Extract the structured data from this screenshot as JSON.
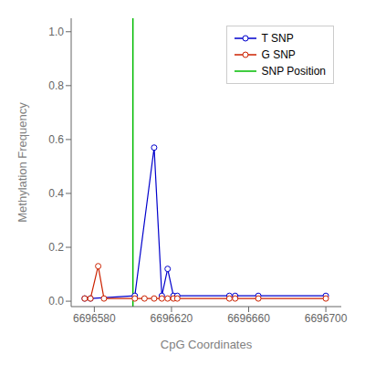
{
  "chart_data": {
    "type": "line",
    "xlabel": "CpG Coordinates",
    "ylabel": "Methylation Frequency",
    "xlim": [
      6696568,
      6696708
    ],
    "ylim": [
      -0.02,
      1.05
    ],
    "xticks": [
      6696580,
      6696620,
      6696660,
      6696700
    ],
    "yticks": [
      {
        "value": 0.0,
        "label": "0.0"
      },
      0.2,
      0.4,
      0.6,
      0.8,
      {
        "value": 1.0,
        "label": "1.0"
      }
    ],
    "grid": false,
    "legend": "upper right",
    "series": [
      {
        "name": "T SNP",
        "color": "#0000cc",
        "marker": "circle",
        "line_style": "solid",
        "x": [
          6696575,
          6696578,
          6696601,
          6696611,
          6696615,
          6696618,
          6696621,
          6696623,
          6696650,
          6696653,
          6696665,
          6696700
        ],
        "values": [
          0.01,
          0.01,
          0.02,
          0.57,
          0.02,
          0.12,
          0.02,
          0.02,
          0.02,
          0.02,
          0.02,
          0.02
        ]
      },
      {
        "name": "G SNP",
        "color": "#cc2200",
        "marker": "circle",
        "line_style": "solid",
        "x": [
          6696575,
          6696578,
          6696582,
          6696585,
          6696601,
          6696606,
          6696611,
          6696615,
          6696618,
          6696621,
          6696623,
          6696650,
          6696653,
          6696665,
          6696700
        ],
        "values": [
          0.01,
          0.01,
          0.13,
          0.01,
          0.01,
          0.01,
          0.01,
          0.01,
          0.01,
          0.01,
          0.01,
          0.01,
          0.01,
          0.01,
          0.01
        ]
      },
      {
        "name": "SNP Position",
        "type": "vline",
        "color": "#00bb00",
        "line_style": "solid",
        "x": 6696600
      }
    ]
  }
}
